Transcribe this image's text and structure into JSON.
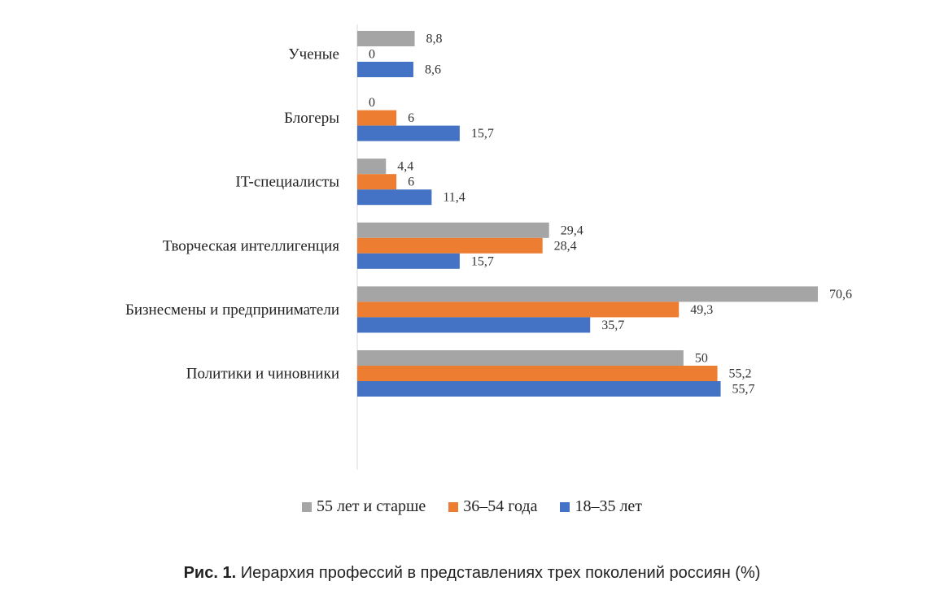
{
  "chart_data": {
    "type": "bar",
    "orientation": "horizontal",
    "categories": [
      "Ученые",
      "Блогеры",
      "IT-специалисты",
      "Творческая интеллигенция",
      "Бизнесмены и предприниматели",
      "Политики и чиновники"
    ],
    "series": [
      {
        "name": "55 лет и старше",
        "color": "#a5a5a5",
        "values": [
          8.8,
          0,
          4.4,
          29.4,
          70.6,
          50
        ],
        "labels": [
          "8,8",
          "0",
          "4,4",
          "29,4",
          "70,6",
          "50"
        ]
      },
      {
        "name": "36–54 года",
        "color": "#ed7d31",
        "values": [
          0,
          6,
          6,
          28.4,
          49.3,
          55.2
        ],
        "labels": [
          "0",
          "6",
          "6",
          "28,4",
          "49,3",
          "55,2"
        ]
      },
      {
        "name": "18–35 лет",
        "color": "#4472c4",
        "values": [
          8.6,
          15.7,
          11.4,
          15.7,
          35.7,
          55.7
        ],
        "labels": [
          "8,6",
          "15,7",
          "11,4",
          "15,7",
          "35,7",
          "55,7"
        ]
      }
    ],
    "xlim": [
      0,
      70.6
    ],
    "grid": false,
    "legend_position": "bottom"
  },
  "caption": {
    "prefix": "Рис. 1.",
    "text": " Иерархия профессий в представлениях трех поколений россиян (%)"
  }
}
